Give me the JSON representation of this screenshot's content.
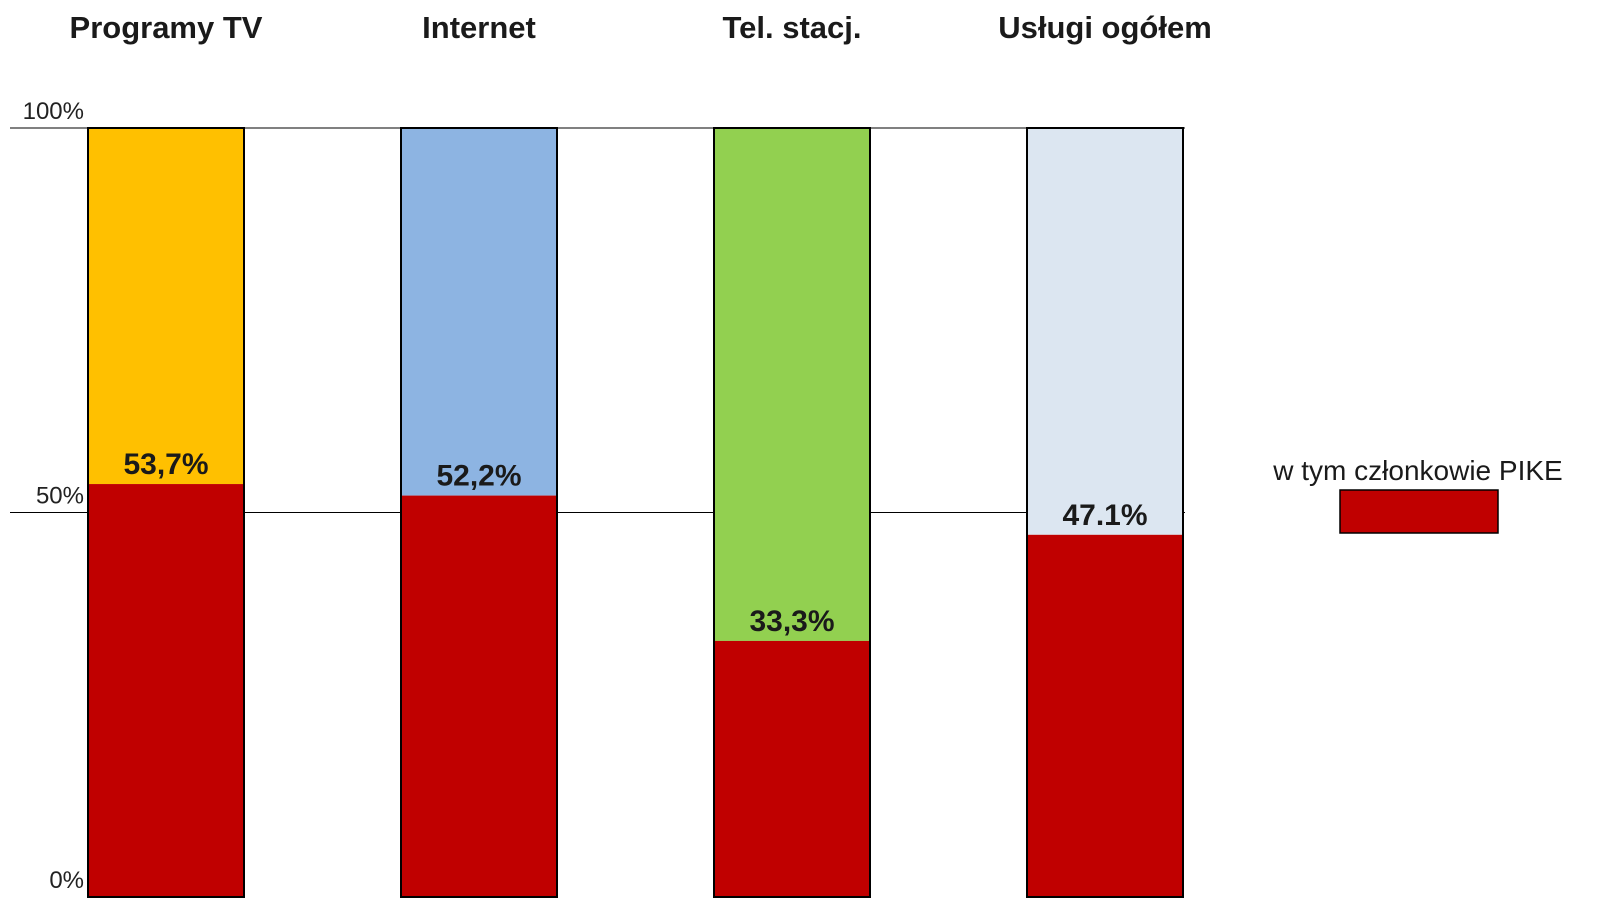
{
  "chart_data": {
    "type": "bar",
    "stacked": true,
    "categories": [
      "Programy TV",
      "Internet",
      "Tel. stacj.",
      "Usługi ogółem"
    ],
    "ylim": [
      0,
      100
    ],
    "y_ticks": [
      {
        "value": 100,
        "label": "100%"
      },
      {
        "value": 50,
        "label": "50%"
      },
      {
        "value": 0,
        "label": "0%"
      }
    ],
    "grid": true,
    "series": [
      {
        "name": "w tym członkowie PIKE",
        "color": "#c00000",
        "values": [
          53.7,
          52.2,
          33.3,
          47.1
        ],
        "labels": [
          "53,7%",
          "52,2%",
          "33,3%",
          "47.1%"
        ]
      },
      {
        "color_per_category": [
          "#ffc000",
          "#8db4e2",
          "#92d050",
          "#dce6f1"
        ],
        "values": [
          46.3,
          47.8,
          66.7,
          52.9
        ]
      }
    ],
    "legend": {
      "position": "right",
      "entries": [
        "w tym członkowie PIKE"
      ]
    }
  }
}
